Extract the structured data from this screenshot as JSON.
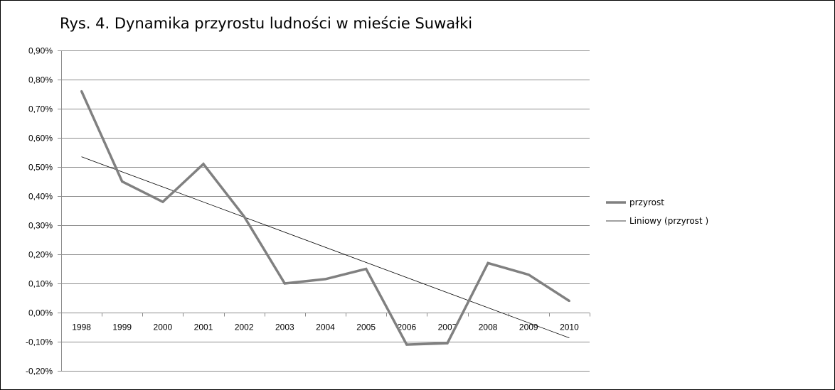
{
  "chart_data": {
    "type": "line",
    "title": "Rys. 4. Dynamika przyrostu ludności w mieście Suwałki",
    "categories": [
      "1998",
      "1999",
      "2000",
      "2001",
      "2002",
      "2003",
      "2004",
      "2005",
      "2006",
      "2007",
      "2008",
      "2009",
      "2010"
    ],
    "series": [
      {
        "name": "przyrost",
        "values": [
          0.76,
          0.45,
          0.38,
          0.51,
          0.33,
          0.1,
          0.115,
          0.15,
          -0.11,
          -0.105,
          0.17,
          0.13,
          0.04
        ],
        "color": "#808080"
      }
    ],
    "trendline": {
      "name": "Liniowy (przyrost )",
      "type": "linear",
      "start": 0.535,
      "end": -0.087,
      "color": "#000000"
    },
    "ylim": [
      -0.2,
      0.9
    ],
    "ytick_step": 0.1,
    "ytick_labels": [
      "-0,20%",
      "-0,10%",
      "0,00%",
      "0,10%",
      "0,20%",
      "0,30%",
      "0,40%",
      "0,50%",
      "0,60%",
      "0,70%",
      "0,80%",
      "0,90%"
    ],
    "grid": true,
    "legend_position": "right"
  }
}
